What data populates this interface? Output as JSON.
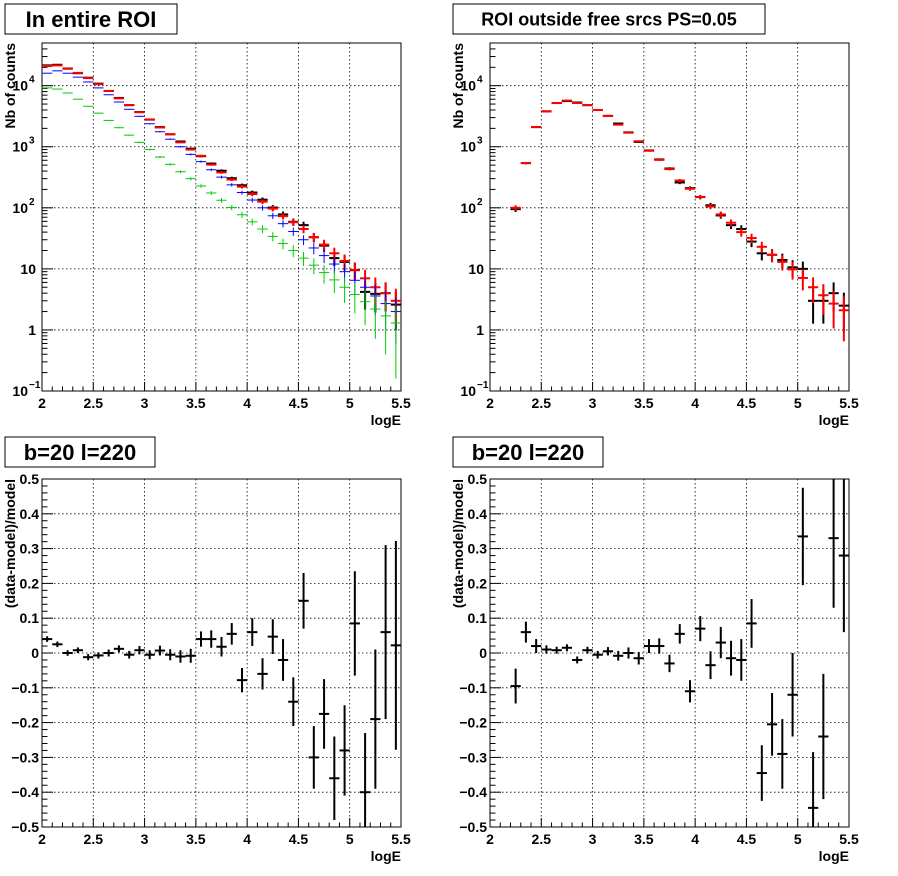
{
  "chart_data": [
    {
      "type": "scatter",
      "title": "In entire ROI",
      "xlabel": "logE",
      "ylabel": "Nb of counts",
      "xlim": [
        2,
        5.5
      ],
      "ylim": [
        0.1,
        50000
      ],
      "log_y": true,
      "grid": true,
      "x_ticks": [
        "2",
        "2.5",
        "3",
        "3.5",
        "4",
        "4.5",
        "5",
        "5.5"
      ],
      "y_ticks": [
        {
          "v": 0.1,
          "base": "10",
          "exp": "−1"
        },
        {
          "v": 1,
          "base": "1",
          "exp": ""
        },
        {
          "v": 10,
          "base": "10",
          "exp": ""
        },
        {
          "v": 100,
          "base": "10",
          "exp": "2"
        },
        {
          "v": 1000,
          "base": "10",
          "exp": "3"
        },
        {
          "v": 10000,
          "base": "10",
          "exp": "4"
        }
      ],
      "series": [
        {
          "color": "#000000",
          "x": [
            2.05,
            2.15,
            2.25,
            2.35,
            2.45,
            2.55,
            2.65,
            2.75,
            2.85,
            2.95,
            3.05,
            3.15,
            3.25,
            3.35,
            3.45,
            3.55,
            3.65,
            3.75,
            3.85,
            3.95,
            4.05,
            4.15,
            4.25,
            4.35,
            4.45,
            4.55,
            4.65,
            4.75,
            4.85,
            4.95,
            5.05,
            5.15,
            5.25,
            5.35,
            5.45
          ],
          "y": [
            21500,
            22000,
            19000,
            16000,
            13500,
            10800,
            8200,
            6300,
            4800,
            3700,
            2780,
            2100,
            1600,
            1220,
            930,
            700,
            530,
            405,
            305,
            234,
            178,
            136,
            101,
            78,
            59,
            52,
            33,
            24,
            15,
            13,
            9.6,
            4.2,
            3.9,
            4.0,
            2.6
          ]
        },
        {
          "color": "#ff0000",
          "x": [
            2.05,
            2.15,
            2.25,
            2.35,
            2.45,
            2.55,
            2.65,
            2.75,
            2.85,
            2.95,
            3.05,
            3.15,
            3.25,
            3.35,
            3.45,
            3.55,
            3.65,
            3.75,
            3.85,
            3.95,
            4.05,
            4.15,
            4.25,
            4.35,
            4.45,
            4.55,
            4.65,
            4.75,
            4.85,
            4.95,
            5.05,
            5.15,
            5.25,
            5.35,
            5.45
          ],
          "y": [
            21000,
            21500,
            19200,
            16200,
            13300,
            10600,
            8200,
            6200,
            4800,
            3680,
            2800,
            2070,
            1600,
            1180,
            900,
            710,
            510,
            380,
            290,
            222,
            168,
            126,
            97,
            73,
            58,
            45,
            33,
            25,
            18,
            13.5,
            9.5,
            7,
            5,
            4,
            3
          ]
        },
        {
          "color": "#0000ff",
          "x": [
            2.05,
            2.15,
            2.25,
            2.35,
            2.45,
            2.55,
            2.65,
            2.75,
            2.85,
            2.95,
            3.05,
            3.15,
            3.25,
            3.35,
            3.45,
            3.55,
            3.65,
            3.75,
            3.85,
            3.95,
            4.05,
            4.15,
            4.25,
            4.35,
            4.45,
            4.55,
            4.65,
            4.75,
            4.85,
            4.95,
            5.05,
            5.15,
            5.25,
            5.35,
            5.45
          ],
          "y": [
            16000,
            17500,
            16000,
            13800,
            11500,
            9200,
            7100,
            5400,
            4100,
            3150,
            2380,
            1760,
            1330,
            1000,
            750,
            570,
            420,
            318,
            238,
            178,
            134,
            100,
            74,
            55,
            41,
            30,
            22,
            16.5,
            12,
            9,
            6.5,
            5,
            3.6,
            2.7,
            2
          ]
        },
        {
          "color": "#00cc00",
          "x": [
            2.05,
            2.15,
            2.25,
            2.35,
            2.45,
            2.55,
            2.65,
            2.75,
            2.85,
            2.95,
            3.05,
            3.15,
            3.25,
            3.35,
            3.45,
            3.55,
            3.65,
            3.75,
            3.85,
            3.95,
            4.05,
            4.15,
            4.25,
            4.35,
            4.45,
            4.55,
            4.65,
            4.75,
            4.85,
            4.95,
            5.05,
            5.15,
            5.25,
            5.35,
            5.45
          ],
          "y": [
            9200,
            8800,
            7600,
            6000,
            4600,
            3550,
            2700,
            2050,
            1550,
            1180,
            900,
            680,
            515,
            390,
            300,
            228,
            175,
            133,
            101,
            77,
            59,
            45,
            34,
            26,
            20,
            15,
            11.5,
            8.7,
            6.6,
            5,
            3.8,
            2.9,
            2.2,
            1.7,
            1.3
          ]
        }
      ]
    },
    {
      "type": "scatter",
      "title": "ROI outside free srcs PS=0.05",
      "xlabel": "logE",
      "ylabel": "Nb of counts",
      "xlim": [
        2,
        5.5
      ],
      "ylim": [
        0.1,
        50000
      ],
      "log_y": true,
      "grid": true,
      "x_ticks": [
        "2",
        "2.5",
        "3",
        "3.5",
        "4",
        "4.5",
        "5",
        "5.5"
      ],
      "y_ticks": [
        {
          "v": 0.1,
          "base": "10",
          "exp": "−1"
        },
        {
          "v": 1,
          "base": "1",
          "exp": ""
        },
        {
          "v": 10,
          "base": "10",
          "exp": ""
        },
        {
          "v": 100,
          "base": "10",
          "exp": "2"
        },
        {
          "v": 1000,
          "base": "10",
          "exp": "3"
        },
        {
          "v": 10000,
          "base": "10",
          "exp": "4"
        }
      ],
      "series": [
        {
          "color": "#000000",
          "x": [
            2.25,
            2.35,
            2.45,
            2.55,
            2.65,
            2.75,
            2.85,
            2.95,
            3.05,
            3.15,
            3.25,
            3.35,
            3.45,
            3.55,
            3.65,
            3.75,
            3.85,
            3.95,
            4.05,
            4.15,
            4.25,
            4.35,
            4.45,
            4.55,
            4.65,
            4.75,
            4.85,
            4.95,
            5.05,
            5.15,
            5.25,
            5.35,
            5.45
          ],
          "y": [
            95,
            540,
            2100,
            3800,
            5200,
            5600,
            5300,
            4800,
            4000,
            3200,
            2400,
            1720,
            1200,
            870,
            620,
            440,
            260,
            210,
            150,
            110,
            75,
            52,
            45,
            28,
            18,
            17,
            14,
            10.6,
            10,
            3,
            3,
            4,
            2.5
          ]
        },
        {
          "color": "#ff0000",
          "x": [
            2.25,
            2.35,
            2.45,
            2.55,
            2.65,
            2.75,
            2.85,
            2.95,
            3.05,
            3.15,
            3.25,
            3.35,
            3.45,
            3.55,
            3.65,
            3.75,
            3.85,
            3.95,
            4.05,
            4.15,
            4.25,
            4.35,
            4.45,
            4.55,
            4.65,
            4.75,
            4.85,
            4.95,
            5.05,
            5.15,
            5.25,
            5.35,
            5.45
          ],
          "y": [
            100,
            540,
            2100,
            3800,
            5200,
            5700,
            5200,
            4800,
            4000,
            3200,
            2300,
            1700,
            1230,
            860,
            610,
            430,
            280,
            205,
            150,
            105,
            78,
            57,
            40,
            32,
            23,
            17,
            13,
            9.8,
            7.1,
            5,
            3.7,
            2.7,
            2.1
          ]
        }
      ]
    },
    {
      "type": "scatter",
      "title": "b=20 l=220",
      "xlabel": "logE",
      "ylabel": "(data-model)/model",
      "xlim": [
        2,
        5.5
      ],
      "ylim": [
        -0.5,
        0.5
      ],
      "grid": true,
      "x_ticks": [
        "2",
        "2.5",
        "3",
        "3.5",
        "4",
        "4.5",
        "5",
        "5.5"
      ],
      "y_ticks": [
        "−0.5",
        "−0.4",
        "−0.3",
        "−0.2",
        "−0.1",
        "0",
        "0.1",
        "0.2",
        "0.3",
        "0.4",
        "0.5"
      ],
      "series": [
        {
          "color": "#000000",
          "x": [
            2.05,
            2.15,
            2.25,
            2.35,
            2.45,
            2.55,
            2.65,
            2.75,
            2.85,
            2.95,
            3.05,
            3.15,
            3.25,
            3.35,
            3.45,
            3.55,
            3.65,
            3.75,
            3.85,
            3.95,
            4.05,
            4.15,
            4.25,
            4.35,
            4.45,
            4.55,
            4.65,
            4.75,
            4.85,
            4.95,
            5.05,
            5.15,
            5.25,
            5.35,
            5.45
          ],
          "y": [
            0.04,
            0.025,
            0.0,
            0.008,
            -0.012,
            -0.007,
            0.0,
            0.012,
            -0.005,
            0.008,
            -0.005,
            0.007,
            -0.005,
            -0.01,
            -0.008,
            0.04,
            0.04,
            0.018,
            0.055,
            -0.078,
            0.06,
            -0.06,
            0.047,
            -0.02,
            -0.14,
            0.15,
            -0.3,
            -0.175,
            -0.36,
            -0.28,
            0.085,
            -0.4,
            -0.19,
            0.06,
            0.022
          ],
          "err": [
            0.008,
            0.008,
            0.008,
            0.008,
            0.009,
            0.009,
            0.01,
            0.01,
            0.011,
            0.012,
            0.013,
            0.014,
            0.016,
            0.018,
            0.02,
            0.022,
            0.025,
            0.028,
            0.031,
            0.035,
            0.04,
            0.045,
            0.05,
            0.06,
            0.07,
            0.08,
            0.09,
            0.1,
            0.12,
            0.13,
            0.15,
            0.17,
            0.2,
            0.25,
            0.3
          ]
        }
      ]
    },
    {
      "type": "scatter",
      "title": "b=20 l=220",
      "xlabel": "logE",
      "ylabel": "(data-model)/model",
      "xlim": [
        2,
        5.5
      ],
      "ylim": [
        -0.5,
        0.5
      ],
      "grid": true,
      "x_ticks": [
        "2",
        "2.5",
        "3",
        "3.5",
        "4",
        "4.5",
        "5",
        "5.5"
      ],
      "y_ticks": [
        "−0.5",
        "−0.4",
        "−0.3",
        "−0.2",
        "−0.1",
        "0",
        "0.1",
        "0.2",
        "0.3",
        "0.4",
        "0.5"
      ],
      "series": [
        {
          "color": "#000000",
          "x": [
            2.25,
            2.35,
            2.45,
            2.55,
            2.65,
            2.75,
            2.85,
            2.95,
            3.05,
            3.15,
            3.25,
            3.35,
            3.45,
            3.55,
            3.65,
            3.75,
            3.85,
            3.95,
            4.05,
            4.15,
            4.25,
            4.35,
            4.45,
            4.55,
            4.65,
            4.75,
            4.85,
            4.95,
            5.05,
            5.15,
            5.25,
            5.35,
            5.45
          ],
          "y": [
            -0.095,
            0.06,
            0.02,
            0.01,
            0.008,
            0.015,
            -0.02,
            0.008,
            -0.005,
            0.005,
            -0.008,
            0.0,
            -0.015,
            0.02,
            0.02,
            -0.03,
            0.055,
            -0.11,
            0.07,
            -0.035,
            0.03,
            -0.015,
            -0.02,
            0.085,
            -0.345,
            -0.205,
            -0.29,
            -0.12,
            0.335,
            -0.445,
            -0.24,
            0.33,
            0.28
          ],
          "err": [
            0.05,
            0.03,
            0.02,
            0.012,
            0.01,
            0.01,
            0.01,
            0.01,
            0.011,
            0.012,
            0.014,
            0.016,
            0.018,
            0.02,
            0.022,
            0.025,
            0.028,
            0.032,
            0.036,
            0.04,
            0.045,
            0.05,
            0.06,
            0.07,
            0.08,
            0.09,
            0.1,
            0.12,
            0.14,
            0.16,
            0.18,
            0.2,
            0.22
          ]
        }
      ]
    }
  ]
}
